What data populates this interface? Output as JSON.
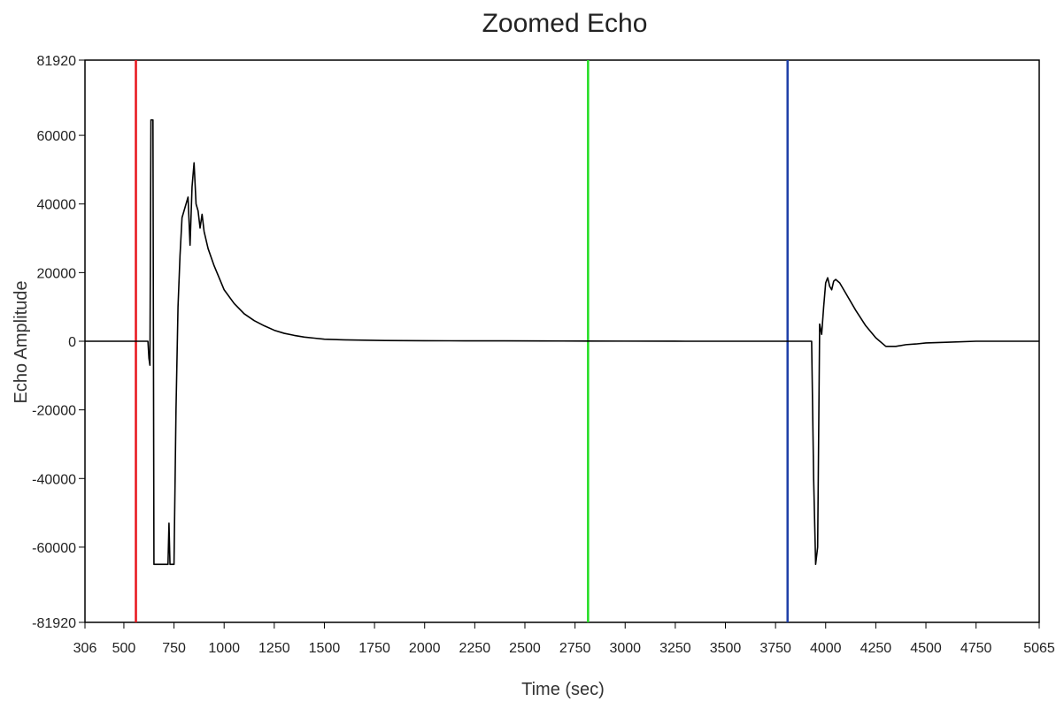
{
  "chart_data": {
    "type": "line",
    "title": "Zoomed Echo",
    "xlabel": "Time (sec)",
    "ylabel": "Echo Amplitude",
    "xlim": [
      306,
      5065
    ],
    "ylim": [
      -81920,
      81920
    ],
    "grid": false,
    "x_ticks": [
      306,
      500,
      750,
      1000,
      1250,
      1500,
      1750,
      2000,
      2250,
      2500,
      2750,
      3000,
      3250,
      3500,
      3750,
      4000,
      4250,
      4500,
      4750,
      5065
    ],
    "y_ticks": [
      81920,
      60000,
      40000,
      20000,
      0,
      -20000,
      -40000,
      -60000,
      -81920
    ],
    "cursors": [
      {
        "x": 560,
        "color": "#e8141b"
      },
      {
        "x": 2815,
        "color": "#22dd22"
      },
      {
        "x": 3810,
        "color": "#1e3fa8"
      }
    ],
    "series": [
      {
        "color": "#000000",
        "points": [
          [
            306,
            0
          ],
          [
            600,
            0
          ],
          [
            620,
            0
          ],
          [
            625,
            -5000
          ],
          [
            630,
            -7000
          ],
          [
            635,
            64500
          ],
          [
            645,
            64500
          ],
          [
            650,
            -65000
          ],
          [
            700,
            -65000
          ],
          [
            720,
            -65000
          ],
          [
            725,
            -53000
          ],
          [
            730,
            -65000
          ],
          [
            750,
            -65000
          ],
          [
            760,
            -20000
          ],
          [
            770,
            10000
          ],
          [
            780,
            25000
          ],
          [
            790,
            36000
          ],
          [
            800,
            38000
          ],
          [
            810,
            40000
          ],
          [
            820,
            42000
          ],
          [
            830,
            28000
          ],
          [
            840,
            45000
          ],
          [
            850,
            52000
          ],
          [
            860,
            40000
          ],
          [
            870,
            38000
          ],
          [
            880,
            33000
          ],
          [
            890,
            37000
          ],
          [
            900,
            32000
          ],
          [
            920,
            27000
          ],
          [
            950,
            22000
          ],
          [
            1000,
            15000
          ],
          [
            1050,
            11000
          ],
          [
            1100,
            8000
          ],
          [
            1150,
            6000
          ],
          [
            1200,
            4500
          ],
          [
            1250,
            3200
          ],
          [
            1300,
            2300
          ],
          [
            1350,
            1700
          ],
          [
            1400,
            1200
          ],
          [
            1450,
            900
          ],
          [
            1500,
            600
          ],
          [
            1600,
            400
          ],
          [
            1700,
            300
          ],
          [
            1800,
            200
          ],
          [
            2000,
            150
          ],
          [
            2200,
            120
          ],
          [
            2400,
            100
          ],
          [
            2600,
            80
          ],
          [
            2800,
            50
          ],
          [
            3000,
            30
          ],
          [
            3300,
            0
          ],
          [
            3900,
            0
          ],
          [
            3930,
            0
          ],
          [
            3940,
            -40000
          ],
          [
            3950,
            -65000
          ],
          [
            3960,
            -60000
          ],
          [
            3970,
            5000
          ],
          [
            3980,
            2000
          ],
          [
            3990,
            10000
          ],
          [
            4000,
            17000
          ],
          [
            4010,
            18500
          ],
          [
            4020,
            16000
          ],
          [
            4030,
            15000
          ],
          [
            4040,
            17500
          ],
          [
            4050,
            18000
          ],
          [
            4070,
            17000
          ],
          [
            4100,
            14000
          ],
          [
            4150,
            9000
          ],
          [
            4200,
            4500
          ],
          [
            4250,
            1000
          ],
          [
            4300,
            -1500
          ],
          [
            4350,
            -1500
          ],
          [
            4400,
            -1000
          ],
          [
            4450,
            -800
          ],
          [
            4500,
            -500
          ],
          [
            4600,
            -300
          ],
          [
            4750,
            0
          ],
          [
            5065,
            0
          ]
        ]
      }
    ]
  }
}
